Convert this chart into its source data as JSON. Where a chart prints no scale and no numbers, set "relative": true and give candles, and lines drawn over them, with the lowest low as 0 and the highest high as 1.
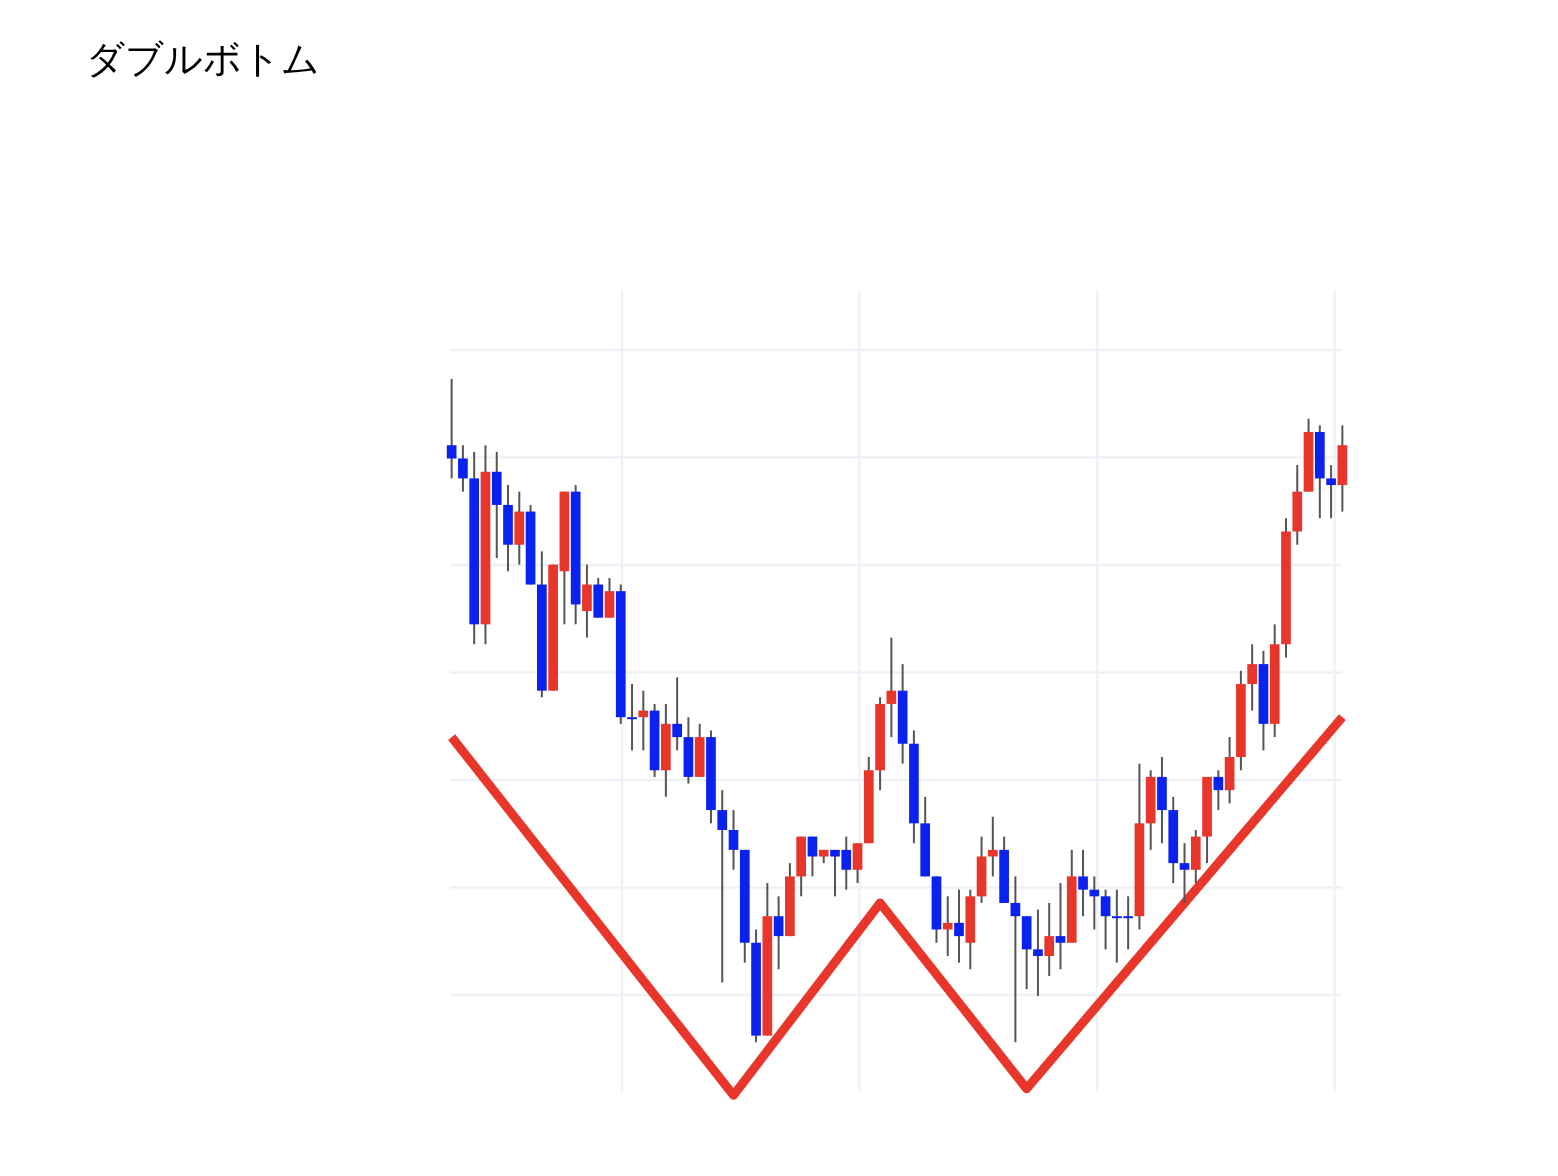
{
  "chart_data": {
    "type": "candlestick",
    "title": "ダブルボトム",
    "relative": true,
    "grid": true,
    "categories": [
      null,
      null,
      null,
      null,
      null,
      null,
      null,
      null,
      null,
      null,
      null,
      null,
      null,
      null,
      null,
      null,
      null,
      null,
      null,
      null,
      null,
      null,
      null,
      null,
      null,
      null,
      null,
      null,
      null,
      null,
      null,
      null,
      null,
      null,
      null,
      null,
      null,
      null,
      null,
      null,
      null,
      null,
      null,
      null,
      null,
      null,
      null,
      null,
      null,
      null,
      null,
      null,
      null,
      null,
      null,
      null,
      null,
      null,
      null,
      null,
      null,
      null,
      null,
      null,
      null,
      null,
      null,
      null,
      null,
      null,
      null,
      null,
      null,
      null,
      null,
      null,
      null,
      null,
      null,
      null
    ],
    "ohlc": [
      [
        0.9,
        1.0,
        0.85,
        0.88
      ],
      [
        0.88,
        0.9,
        0.83,
        0.85
      ],
      [
        0.85,
        0.89,
        0.6,
        0.63
      ],
      [
        0.63,
        0.9,
        0.6,
        0.86
      ],
      [
        0.86,
        0.89,
        0.73,
        0.81
      ],
      [
        0.81,
        0.84,
        0.71,
        0.75
      ],
      [
        0.75,
        0.83,
        0.72,
        0.8
      ],
      [
        0.8,
        0.81,
        0.69,
        0.69
      ],
      [
        0.69,
        0.74,
        0.52,
        0.53
      ],
      [
        0.53,
        0.72,
        0.53,
        0.72
      ],
      [
        0.71,
        0.83,
        0.63,
        0.83
      ],
      [
        0.83,
        0.84,
        0.63,
        0.66
      ],
      [
        0.65,
        0.72,
        0.61,
        0.69
      ],
      [
        0.69,
        0.7,
        0.64,
        0.64
      ],
      [
        0.64,
        0.7,
        0.64,
        0.68
      ],
      [
        0.68,
        0.69,
        0.48,
        0.49
      ],
      [
        0.49,
        0.54,
        0.44,
        0.49
      ],
      [
        0.49,
        0.53,
        0.44,
        0.5
      ],
      [
        0.5,
        0.51,
        0.4,
        0.41
      ],
      [
        0.41,
        0.51,
        0.37,
        0.48
      ],
      [
        0.48,
        0.55,
        0.44,
        0.46
      ],
      [
        0.46,
        0.49,
        0.39,
        0.4
      ],
      [
        0.4,
        0.48,
        0.4,
        0.46
      ],
      [
        0.46,
        0.47,
        0.33,
        0.35
      ],
      [
        0.35,
        0.38,
        0.09,
        0.32
      ],
      [
        0.32,
        0.35,
        0.26,
        0.29
      ],
      [
        0.29,
        0.29,
        0.12,
        0.15
      ],
      [
        0.15,
        0.17,
        0.0,
        0.01
      ],
      [
        0.01,
        0.24,
        0.01,
        0.19
      ],
      [
        0.19,
        0.22,
        0.11,
        0.16
      ],
      [
        0.16,
        0.27,
        0.16,
        0.25
      ],
      [
        0.25,
        0.31,
        0.22,
        0.31
      ],
      [
        0.31,
        0.31,
        0.25,
        0.28
      ],
      [
        0.28,
        0.29,
        0.27,
        0.29
      ],
      [
        0.29,
        0.29,
        0.22,
        0.28
      ],
      [
        0.29,
        0.31,
        0.23,
        0.26
      ],
      [
        0.26,
        0.3,
        0.24,
        0.3
      ],
      [
        0.3,
        0.43,
        0.3,
        0.41
      ],
      [
        0.41,
        0.52,
        0.38,
        0.51
      ],
      [
        0.51,
        0.61,
        0.46,
        0.53
      ],
      [
        0.53,
        0.57,
        0.42,
        0.45
      ],
      [
        0.45,
        0.47,
        0.3,
        0.33
      ],
      [
        0.33,
        0.37,
        0.25,
        0.25
      ],
      [
        0.25,
        0.25,
        0.15,
        0.17
      ],
      [
        0.17,
        0.22,
        0.13,
        0.18
      ],
      [
        0.18,
        0.23,
        0.12,
        0.16
      ],
      [
        0.15,
        0.23,
        0.11,
        0.22
      ],
      [
        0.22,
        0.31,
        0.21,
        0.28
      ],
      [
        0.28,
        0.34,
        0.25,
        0.29
      ],
      [
        0.29,
        0.31,
        0.21,
        0.21
      ],
      [
        0.21,
        0.25,
        0.0,
        0.19
      ],
      [
        0.19,
        0.19,
        0.08,
        0.14
      ],
      [
        0.14,
        0.2,
        0.07,
        0.13
      ],
      [
        0.13,
        0.21,
        0.1,
        0.16
      ],
      [
        0.16,
        0.24,
        0.11,
        0.15
      ],
      [
        0.15,
        0.29,
        0.15,
        0.25
      ],
      [
        0.25,
        0.29,
        0.19,
        0.23
      ],
      [
        0.23,
        0.25,
        0.17,
        0.22
      ],
      [
        0.22,
        0.23,
        0.14,
        0.19
      ],
      [
        0.19,
        0.23,
        0.12,
        0.19
      ],
      [
        0.19,
        0.22,
        0.14,
        0.19
      ],
      [
        0.19,
        0.42,
        0.17,
        0.33
      ],
      [
        0.33,
        0.41,
        0.29,
        0.4
      ],
      [
        0.4,
        0.43,
        0.3,
        0.35
      ],
      [
        0.35,
        0.37,
        0.24,
        0.27
      ],
      [
        0.27,
        0.3,
        0.21,
        0.26
      ],
      [
        0.26,
        0.32,
        0.24,
        0.31
      ],
      [
        0.31,
        0.4,
        0.27,
        0.4
      ],
      [
        0.4,
        0.41,
        0.35,
        0.38
      ],
      [
        0.38,
        0.46,
        0.36,
        0.43
      ],
      [
        0.43,
        0.56,
        0.41,
        0.54
      ],
      [
        0.54,
        0.6,
        0.5,
        0.57
      ],
      [
        0.57,
        0.59,
        0.44,
        0.48
      ],
      [
        0.48,
        0.63,
        0.46,
        0.6
      ],
      [
        0.6,
        0.79,
        0.58,
        0.77
      ],
      [
        0.77,
        0.87,
        0.75,
        0.83
      ],
      [
        0.83,
        0.94,
        0.83,
        0.92
      ],
      [
        0.92,
        0.93,
        0.79,
        0.85
      ],
      [
        0.85,
        0.87,
        0.79,
        0.84
      ],
      [
        0.84,
        0.93,
        0.8,
        0.9
      ]
    ],
    "colors": [
      "#0a22f0",
      "#0a22f0",
      "#0a22f0",
      "#e8372a",
      "#0a22f0",
      "#0a22f0",
      "#e8372a",
      "#0a22f0",
      "#0a22f0",
      "#e8372a",
      "#e8372a",
      "#0a22f0",
      "#e8372a",
      "#0a22f0",
      "#e8372a",
      "#0a22f0",
      "#0a22f0",
      "#e8372a",
      "#0a22f0",
      "#e8372a",
      "#0a22f0",
      "#0a22f0",
      "#e8372a",
      "#0a22f0",
      "#0a22f0",
      "#0a22f0",
      "#0a22f0",
      "#0a22f0",
      "#e8372a",
      "#0a22f0",
      "#e8372a",
      "#e8372a",
      "#0a22f0",
      "#e8372a",
      "#0a22f0",
      "#0a22f0",
      "#e8372a",
      "#e8372a",
      "#e8372a",
      "#e8372a",
      "#0a22f0",
      "#0a22f0",
      "#0a22f0",
      "#0a22f0",
      "#e8372a",
      "#0a22f0",
      "#e8372a",
      "#e8372a",
      "#e8372a",
      "#0a22f0",
      "#0a22f0",
      "#0a22f0",
      "#0a22f0",
      "#e8372a",
      "#0a22f0",
      "#e8372a",
      "#0a22f0",
      "#0a22f0",
      "#0a22f0",
      "#0a22f0",
      "#0a22f0",
      "#e8372a",
      "#e8372a",
      "#0a22f0",
      "#0a22f0",
      "#0a22f0",
      "#e8372a",
      "#e8372a",
      "#0a22f0",
      "#e8372a",
      "#e8372a",
      "#e8372a",
      "#0a22f0",
      "#e8372a",
      "#e8372a",
      "#e8372a",
      "#e8372a",
      "#0a22f0",
      "#0a22f0",
      "#e8372a"
    ],
    "series": [
      {
        "type": "line",
        "color": "#e8372a",
        "values": [
          0.46,
          null,
          null,
          null,
          null,
          null,
          null,
          null,
          null,
          null,
          null,
          null,
          null,
          null,
          null,
          null,
          null,
          null,
          null,
          null,
          null,
          null,
          null,
          null,
          null,
          -0.08,
          null,
          null,
          null,
          null,
          null,
          null,
          null,
          null,
          null,
          null,
          null,
          null,
          0.21,
          null,
          null,
          null,
          null,
          null,
          null,
          null,
          null,
          null,
          null,
          null,
          null,
          -0.07,
          null,
          null,
          null,
          null,
          null,
          null,
          null,
          null,
          null,
          null,
          null,
          null,
          null,
          null,
          null,
          null,
          null,
          null,
          null,
          null,
          null,
          null,
          null,
          null,
          null,
          null,
          null,
          0.49
        ]
      }
    ]
  }
}
